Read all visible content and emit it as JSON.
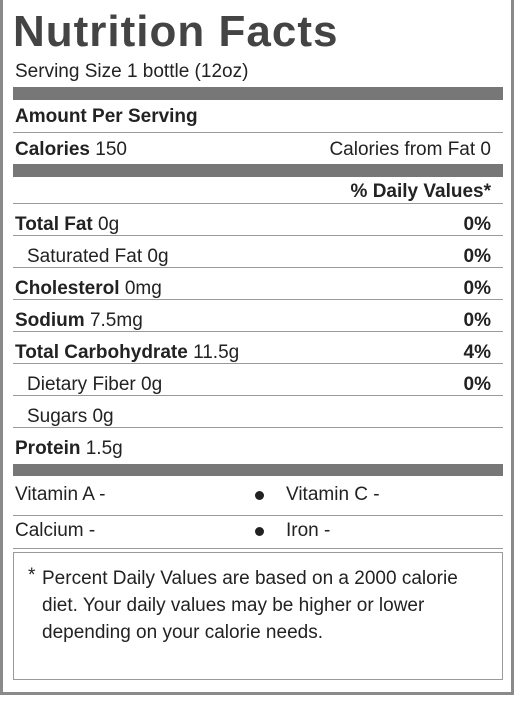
{
  "title": "Nutrition Facts",
  "serving_size": "Serving Size 1 bottle (12oz)",
  "amount_per_serving": "Amount Per Serving",
  "calories": {
    "label": "Calories",
    "value": "150",
    "from_fat": "Calories from Fat 0"
  },
  "daily_values_header": "% Daily Values*",
  "nutrients": [
    {
      "name": "Total Fat",
      "amount": "0g",
      "percent": "0%"
    },
    {
      "name": "Saturated Fat",
      "amount": "0g",
      "percent": "0%"
    },
    {
      "name": "Cholesterol",
      "amount": "0mg",
      "percent": "0%"
    },
    {
      "name": "Sodium",
      "amount": "7.5mg",
      "percent": "0%"
    },
    {
      "name": "Total Carbohydrate",
      "amount": "11.5g",
      "percent": "4%"
    },
    {
      "name": "Dietary Fiber",
      "amount": "0g",
      "percent": "0%"
    },
    {
      "name": "Sugars",
      "amount": "0g"
    },
    {
      "name": "Protein",
      "amount": "1.5g"
    }
  ],
  "vitamins": [
    [
      "Vitamin A -",
      "Vitamin C -"
    ],
    [
      "Calcium -",
      "Iron -"
    ]
  ],
  "footnote": {
    "mark": "*",
    "text": "Percent Daily Values are based on a 2000 calorie diet. Your daily values may be higher or lower depending on your calorie needs."
  }
}
